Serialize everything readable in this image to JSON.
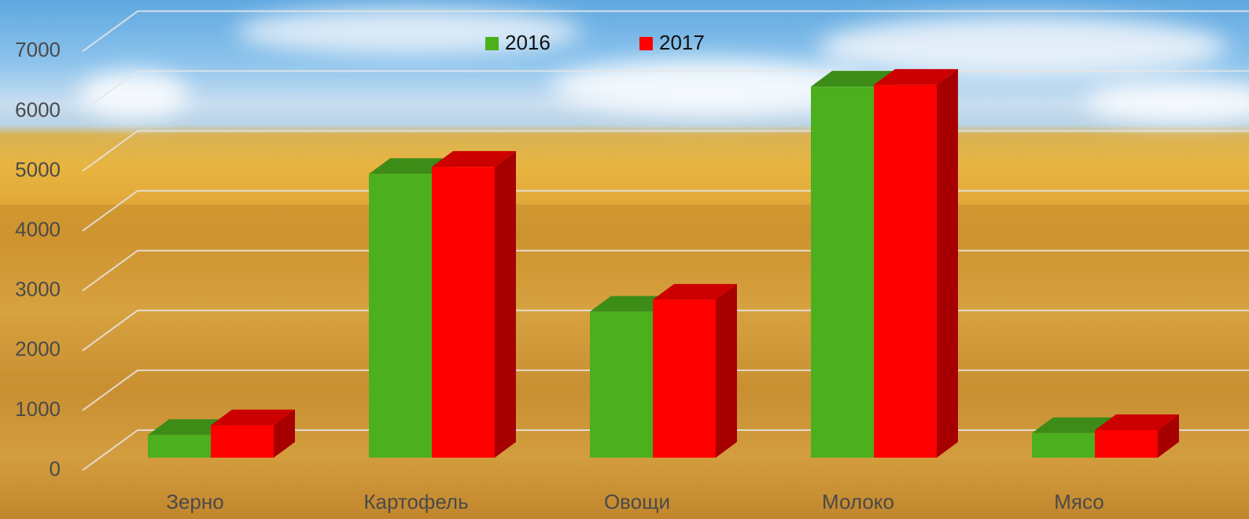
{
  "chart_data": {
    "type": "bar3d",
    "categories": [
      "Зерно",
      "Картофель",
      "Овощи",
      "Молоко",
      "Мясо"
    ],
    "series": [
      {
        "name": "2016",
        "color": "#4caf1e",
        "values": [
          380,
          4740,
          2440,
          6200,
          410
        ]
      },
      {
        "name": "2017",
        "color": "#ff0000",
        "values": [
          540,
          4860,
          2640,
          6230,
          460
        ]
      }
    ],
    "ylim": [
      0,
      7000
    ],
    "yticks": [
      0,
      1000,
      2000,
      3000,
      4000,
      5000,
      6000,
      7000
    ],
    "grid": true,
    "legend": "top"
  }
}
